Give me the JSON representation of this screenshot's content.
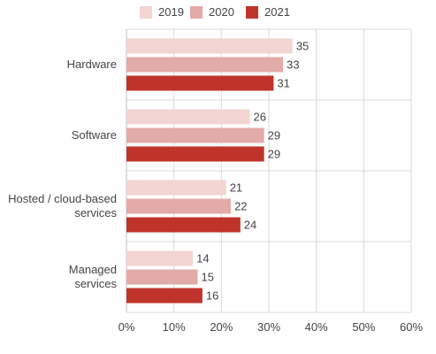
{
  "chart_data": {
    "type": "bar",
    "orientation": "horizontal",
    "categories": [
      "Hardware",
      "Software",
      "Hosted / cloud-based services",
      "Managed services"
    ],
    "category_lines": [
      [
        "Hardware"
      ],
      [
        "Software"
      ],
      [
        "Hosted / cloud-based",
        "services"
      ],
      [
        "Managed",
        "services"
      ]
    ],
    "series": [
      {
        "name": "2019",
        "color": "#f2d4d3",
        "values": [
          35,
          26,
          21,
          14
        ]
      },
      {
        "name": "2020",
        "color": "#e2aba8",
        "values": [
          33,
          29,
          22,
          15
        ]
      },
      {
        "name": "2021",
        "color": "#c0332a",
        "values": [
          31,
          29,
          24,
          16
        ]
      }
    ],
    "xlim": [
      0,
      60
    ],
    "xticks": [
      0,
      10,
      20,
      30,
      40,
      50,
      60
    ],
    "tick_format": "percent",
    "grid": true,
    "legend_position": "top"
  }
}
